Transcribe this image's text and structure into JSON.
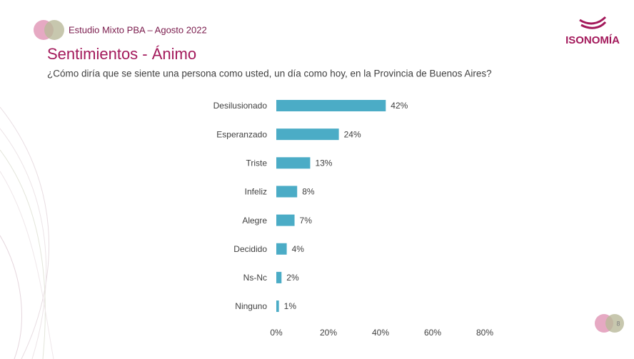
{
  "header": {
    "study": "Estudio Mixto PBA – Agosto 2022",
    "logo": "ISONOMÍA",
    "page": "8"
  },
  "chart_data": {
    "type": "bar",
    "orientation": "horizontal",
    "title": "Sentimientos - Ánimo",
    "subtitle": "¿Cómo diría que se siente una persona como usted, un día como hoy, en la Provincia de Buenos Aires?",
    "categories": [
      "Desilusionado",
      "Esperanzado",
      "Triste",
      "Infeliz",
      "Alegre",
      "Decidido",
      "Ns-Nc",
      "Ninguno"
    ],
    "values": [
      42,
      24,
      13,
      8,
      7,
      4,
      2,
      1
    ],
    "value_labels": [
      "42%",
      "24%",
      "13%",
      "8%",
      "7%",
      "4%",
      "2%",
      "1%"
    ],
    "color": "#4bacc6",
    "xlim": [
      0,
      80
    ],
    "xticks": [
      {
        "value": 0,
        "label": "0%"
      },
      {
        "value": 20,
        "label": "20%"
      },
      {
        "value": 40,
        "label": "40%"
      },
      {
        "value": 60,
        "label": "60%"
      },
      {
        "value": 80,
        "label": "80%"
      }
    ],
    "grid": false
  }
}
